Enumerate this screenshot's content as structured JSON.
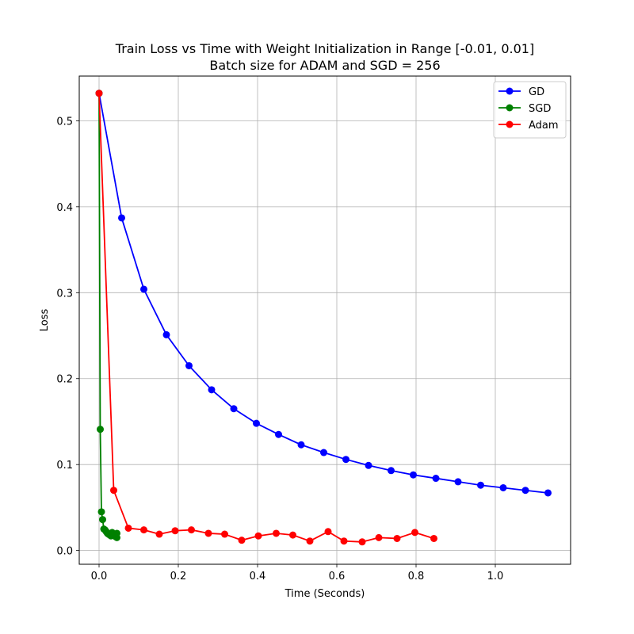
{
  "chart_data": {
    "type": "line",
    "title": "Train Loss vs Time with Weight Initialization in Range [-0.01, 0.01]",
    "subtitle": "Batch size for ADAM and SGD = 256",
    "xlabel": "Time (Seconds)",
    "ylabel": "Loss",
    "xlim": [
      -0.05,
      1.19
    ],
    "ylim": [
      -0.016,
      0.552
    ],
    "xticks": [
      0.0,
      0.2,
      0.4,
      0.6,
      0.8,
      1.0
    ],
    "xtick_labels": [
      "0.0",
      "0.2",
      "0.4",
      "0.6",
      "0.8",
      "1.0"
    ],
    "yticks": [
      0.0,
      0.1,
      0.2,
      0.3,
      0.4,
      0.5
    ],
    "ytick_labels": [
      "0.0",
      "0.1",
      "0.2",
      "0.3",
      "0.4",
      "0.5"
    ],
    "grid": true,
    "legend_position": "top-right",
    "series": [
      {
        "name": "GD",
        "color": "#0000ff",
        "x": [
          0.0,
          0.057,
          0.113,
          0.17,
          0.227,
          0.284,
          0.34,
          0.397,
          0.453,
          0.51,
          0.567,
          0.623,
          0.68,
          0.737,
          0.793,
          0.85,
          0.906,
          0.963,
          1.02,
          1.076,
          1.133
        ],
        "y": [
          0.532,
          0.387,
          0.304,
          0.251,
          0.215,
          0.187,
          0.165,
          0.148,
          0.135,
          0.123,
          0.114,
          0.106,
          0.099,
          0.093,
          0.088,
          0.084,
          0.08,
          0.076,
          0.073,
          0.07,
          0.067
        ]
      },
      {
        "name": "SGD",
        "color": "#008000",
        "x": [
          0.0,
          0.003,
          0.006,
          0.009,
          0.012,
          0.015,
          0.018,
          0.021,
          0.024,
          0.027,
          0.03,
          0.033,
          0.036,
          0.039,
          0.042,
          0.045,
          0.045
        ],
        "y": [
          0.532,
          0.141,
          0.045,
          0.036,
          0.025,
          0.024,
          0.022,
          0.02,
          0.019,
          0.018,
          0.017,
          0.021,
          0.018,
          0.017,
          0.016,
          0.015,
          0.02
        ]
      },
      {
        "name": "Adam",
        "color": "#ff0000",
        "x": [
          0.0,
          0.037,
          0.074,
          0.113,
          0.152,
          0.192,
          0.233,
          0.276,
          0.317,
          0.36,
          0.402,
          0.447,
          0.489,
          0.532,
          0.578,
          0.618,
          0.664,
          0.706,
          0.752,
          0.797,
          0.845
        ],
        "y": [
          0.532,
          0.07,
          0.026,
          0.024,
          0.019,
          0.023,
          0.024,
          0.02,
          0.019,
          0.012,
          0.017,
          0.02,
          0.018,
          0.011,
          0.022,
          0.011,
          0.01,
          0.015,
          0.014,
          0.021,
          0.014
        ]
      }
    ]
  }
}
